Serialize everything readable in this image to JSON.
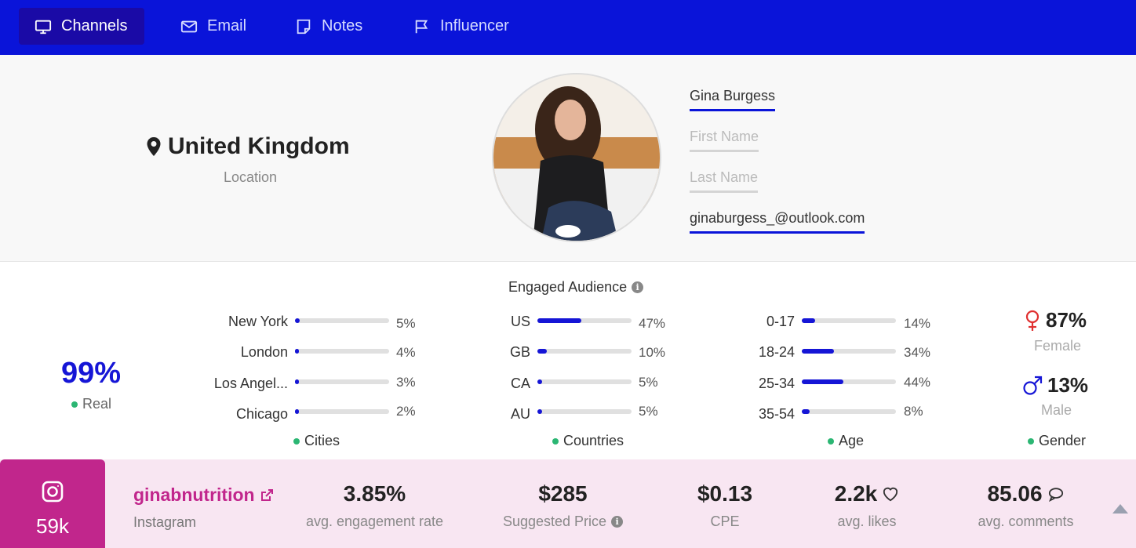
{
  "nav": {
    "tabs": [
      {
        "label": "Channels",
        "icon": "monitor-icon",
        "active": true
      },
      {
        "label": "Email",
        "icon": "envelope-icon",
        "active": false
      },
      {
        "label": "Notes",
        "icon": "note-icon",
        "active": false
      },
      {
        "label": "Influencer",
        "icon": "flag-icon",
        "active": false
      }
    ]
  },
  "profile": {
    "location": "United Kingdom",
    "location_label": "Location",
    "display_name": "Gina Burgess",
    "first_name_placeholder": "First Name",
    "last_name_placeholder": "Last Name",
    "email": "ginaburgess_@outlook.com"
  },
  "audience": {
    "title": "Engaged Audience",
    "real": {
      "value": "99%",
      "label": "Real"
    },
    "cities": {
      "label": "Cities",
      "rows": [
        {
          "name": "New York",
          "value": "5%",
          "pct": 5
        },
        {
          "name": "London",
          "value": "4%",
          "pct": 4
        },
        {
          "name": "Los Angel...",
          "value": "3%",
          "pct": 3
        },
        {
          "name": "Chicago",
          "value": "2%",
          "pct": 2
        }
      ]
    },
    "countries": {
      "label": "Countries",
      "rows": [
        {
          "name": "US",
          "value": "47%",
          "pct": 47
        },
        {
          "name": "GB",
          "value": "10%",
          "pct": 10
        },
        {
          "name": "CA",
          "value": "5%",
          "pct": 5
        },
        {
          "name": "AU",
          "value": "5%",
          "pct": 5
        }
      ]
    },
    "age": {
      "label": "Age",
      "rows": [
        {
          "name": "0-17",
          "value": "14%",
          "pct": 14
        },
        {
          "name": "18-24",
          "value": "34%",
          "pct": 34
        },
        {
          "name": "25-34",
          "value": "44%",
          "pct": 44
        },
        {
          "name": "35-54",
          "value": "8%",
          "pct": 8
        }
      ]
    },
    "gender": {
      "label": "Gender",
      "female": {
        "value": "87%",
        "label": "Female"
      },
      "male": {
        "value": "13%",
        "label": "Male"
      }
    }
  },
  "colors": {
    "nav_bg": "#0a14d9",
    "accent": "#1515d6",
    "instagram": "#c1268c",
    "female": "#e03030",
    "male": "#1515d6",
    "dot": "#2bb673"
  },
  "instagram": {
    "followers": "59k",
    "handle": "ginabnutrition",
    "platform": "Instagram",
    "metrics": [
      {
        "value": "3.85%",
        "label": "avg. engagement rate"
      },
      {
        "value": "$285",
        "label": "Suggested Price"
      },
      {
        "value": "$0.13",
        "label": "CPE"
      },
      {
        "value": "2.2k",
        "label": "avg. likes"
      },
      {
        "value": "85.06",
        "label": "avg. comments"
      }
    ]
  }
}
